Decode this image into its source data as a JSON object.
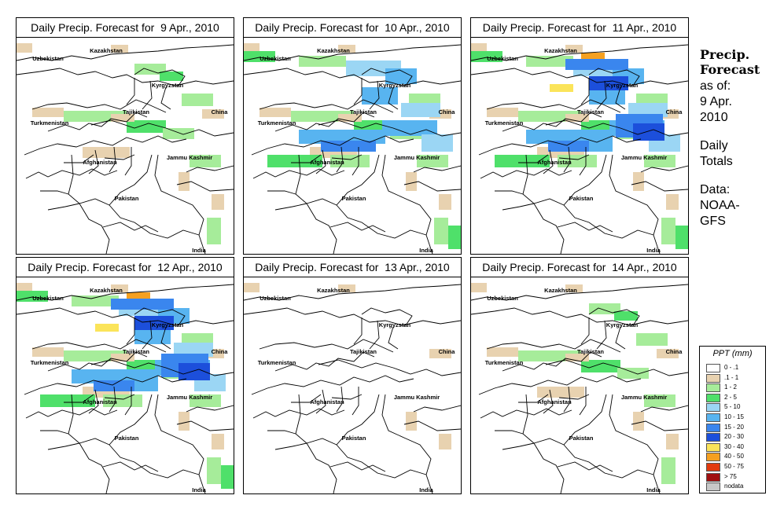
{
  "panels": [
    {
      "title": "Daily Precip. Forecast for  9 Apr., 2010",
      "precip_level": 1
    },
    {
      "title": "Daily Precip. Forecast for  10 Apr., 2010",
      "precip_level": 2
    },
    {
      "title": "Daily Precip. Forecast for  11 Apr., 2010",
      "precip_level": 3
    },
    {
      "title": "Daily Precip. Forecast for  12 Apr., 2010",
      "precip_level": 3
    },
    {
      "title": "Daily Precip. Forecast for  13 Apr., 2010",
      "precip_level": 0
    },
    {
      "title": "Daily Precip. Forecast for  14 Apr., 2010",
      "precip_level": 1
    }
  ],
  "map_labels": {
    "kazakhstan": "Kazakhstan",
    "uzbekistan": "Uzbekistan",
    "kyrgyzstan": "Kyrgyzstan",
    "tajikistan": "Tajikistan",
    "china": "China",
    "turkmenistan": "Turkmenistan",
    "afghanistan": "Afghanistan",
    "jammu_kashmir": "Jammu Kashmir",
    "pakistan": "Pakistan",
    "india": "India"
  },
  "sidebar": {
    "heading_line1": "Precip.",
    "heading_line2": "Forecast",
    "asof_line1": "as of:",
    "asof_line2": "9 Apr.",
    "asof_line3": "2010",
    "totals_line1": "Daily",
    "totals_line2": "Totals",
    "data_line1": "Data:",
    "data_line2": "NOAA-",
    "data_line3": "GFS"
  },
  "legend": {
    "title": "PPT (mm)",
    "items": [
      {
        "label": "0 - .1",
        "color": "#ffffff"
      },
      {
        "label": ".1 - 1",
        "color": "#e8d2b0"
      },
      {
        "label": "1 - 2",
        "color": "#a6ec9a"
      },
      {
        "label": "2 - 5",
        "color": "#4fe06a"
      },
      {
        "label": "5 - 10",
        "color": "#9bd6f4"
      },
      {
        "label": "10 - 15",
        "color": "#58b4f0"
      },
      {
        "label": "15 - 20",
        "color": "#3a86ee"
      },
      {
        "label": "20 - 30",
        "color": "#1c4fdb"
      },
      {
        "label": "30 - 40",
        "color": "#fbe45a"
      },
      {
        "label": "40 - 50",
        "color": "#f5a020"
      },
      {
        "label": "50 - 75",
        "color": "#e23a0e"
      },
      {
        "label": "> 75",
        "color": "#a01010"
      },
      {
        "label": "nodata",
        "color": "#c8c8c8"
      }
    ]
  }
}
